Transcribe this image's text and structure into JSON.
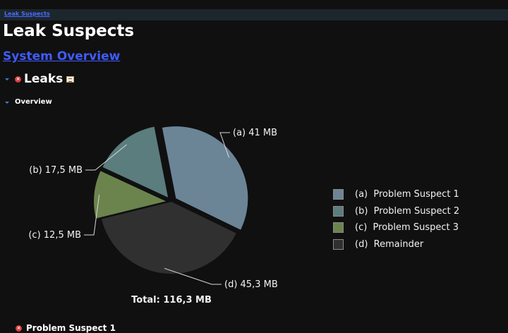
{
  "breadcrumb": {
    "label": "Leak Suspects"
  },
  "page": {
    "title": "Leak Suspects",
    "system_overview_link": "System Overview"
  },
  "leaks_section": {
    "title": "Leaks",
    "error_icon": "error-icon",
    "details_icon": "details-icon"
  },
  "overview_section": {
    "title": "Overview"
  },
  "chart_data": {
    "type": "pie",
    "unit": "MB",
    "slices": [
      {
        "key": "a",
        "name": "Problem Suspect 1",
        "value": 41.0,
        "label": "(a)  41 MB",
        "legend": "(a)  Problem Suspect 1",
        "color": "#6b8597",
        "exploded": true
      },
      {
        "key": "b",
        "name": "Problem Suspect 2",
        "value": 17.5,
        "label": "(b)  17,5 MB",
        "legend": "(b)  Problem Suspect 2",
        "color": "#5b7d7e",
        "exploded": true
      },
      {
        "key": "c",
        "name": "Problem Suspect 3",
        "value": 12.5,
        "label": "(c)  12,5 MB",
        "legend": "(c)  Problem Suspect 3",
        "color": "#6b844e",
        "exploded": true
      },
      {
        "key": "d",
        "name": "Remainder",
        "value": 45.3,
        "label": "(d)  45,3 MB",
        "legend": "(d)  Remainder",
        "color": "#303030",
        "exploded": false
      }
    ],
    "total_label": "Total: 116,3 MB",
    "legend_position": "right"
  },
  "next_section": {
    "title": "Problem Suspect 1",
    "icon": "error-icon"
  }
}
